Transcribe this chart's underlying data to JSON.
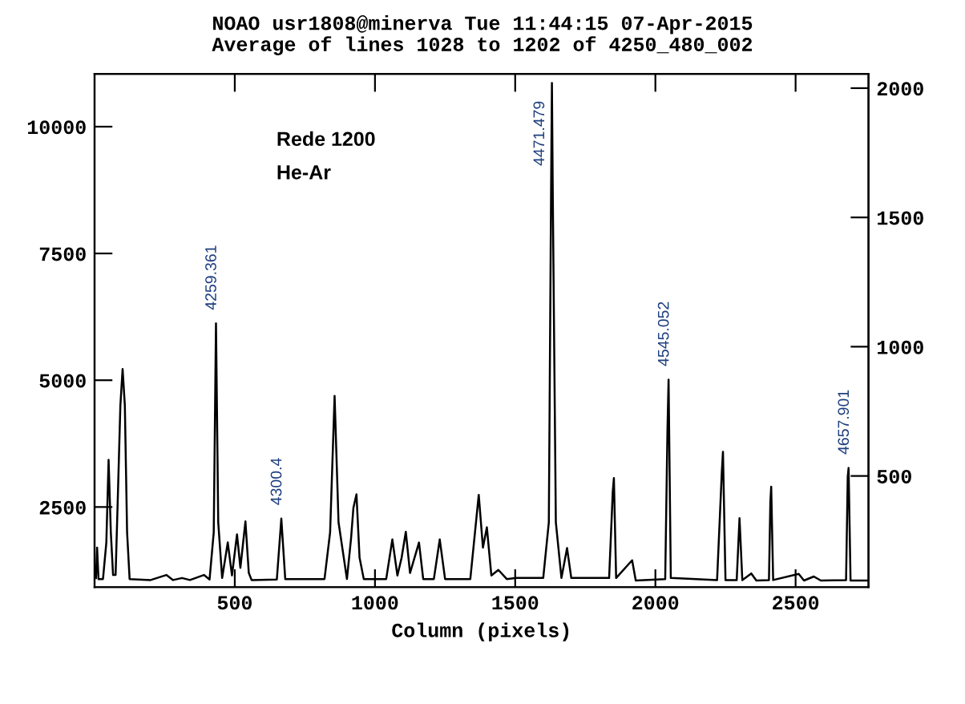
{
  "chart_data": {
    "type": "line",
    "title": "NOAO usr1808@minerva Tue 11:44:15 07-Apr-2015",
    "subtitle": "Average of lines 1028 to 1202 of 4250_480_002",
    "xlabel": "Column (pixels)",
    "xlim": [
      0,
      2760
    ],
    "xticks": [
      500,
      1000,
      1500,
      2000,
      2500
    ],
    "ylim": [
      920,
      11040
    ],
    "yticks": [
      2500,
      5000,
      7500,
      10000
    ],
    "y2lim": [
      70,
      2055
    ],
    "y2ticks": [
      500,
      1000,
      1500,
      2000
    ],
    "grid": false,
    "legend": false,
    "marker": "none",
    "line_style": "solid",
    "annotations": [
      "Rede 1200",
      "He-Ar",
      {
        "text": "4259.361",
        "x": 433,
        "y": 6120
      },
      {
        "text": "4300.4",
        "x": 666,
        "y": 2270
      },
      {
        "text": "4471.479",
        "x": 1631,
        "y": 10860
      },
      {
        "text": "4545.052",
        "x": 2047,
        "y": 5010
      },
      {
        "text": "4657.901",
        "x": 2689,
        "y": 3270
      }
    ],
    "series": [
      {
        "color": "#000000",
        "x": [
          5,
          9,
          14,
          30,
          42,
          50,
          58,
          66,
          75,
          84,
          92,
          100,
          108,
          116,
          125,
          200,
          256,
          280,
          312,
          340,
          390,
          410,
          425,
          433,
          441,
          455,
          475,
          490,
          508,
          520,
          538,
          550,
          560,
          650,
          666,
          680,
          820,
          840,
          856,
          870,
          900,
          915,
          923,
          934,
          945,
          960,
          1040,
          1062,
          1080,
          1095,
          1110,
          1125,
          1157,
          1172,
          1210,
          1231,
          1250,
          1340,
          1370,
          1385,
          1399,
          1415,
          1440,
          1470,
          1504,
          1600,
          1620,
          1628,
          1631,
          1634,
          1645,
          1665,
          1685,
          1700,
          1835,
          1848,
          1852,
          1860,
          1917,
          1930,
          2035,
          2043,
          2047,
          2055,
          2220,
          2237,
          2241,
          2250,
          2290,
          2300,
          2310,
          2342,
          2360,
          2405,
          2410,
          2413,
          2420,
          2511,
          2530,
          2565,
          2590,
          2680,
          2686,
          2689,
          2696,
          2760
        ],
        "values": [
          1100,
          1700,
          1080,
          1080,
          1800,
          3430,
          2000,
          1160,
          1160,
          2900,
          4500,
          5220,
          4500,
          2000,
          1080,
          1060,
          1160,
          1060,
          1100,
          1060,
          1160,
          1070,
          2000,
          6120,
          2200,
          1100,
          1800,
          1150,
          1960,
          1300,
          2215,
          1200,
          1060,
          1070,
          2270,
          1080,
          1080,
          2000,
          4690,
          2200,
          1080,
          1900,
          2480,
          2750,
          1500,
          1080,
          1080,
          1860,
          1150,
          1500,
          2010,
          1200,
          1800,
          1080,
          1080,
          1860,
          1080,
          1080,
          2740,
          1700,
          2100,
          1150,
          1260,
          1080,
          1100,
          1100,
          2200,
          8700,
          10860,
          8700,
          2200,
          1100,
          1690,
          1100,
          1100,
          2800,
          3070,
          1100,
          1450,
          1050,
          1080,
          4000,
          5010,
          1100,
          1060,
          3200,
          3590,
          1060,
          1060,
          2280,
          1060,
          1190,
          1050,
          1060,
          2600,
          2900,
          1060,
          1180,
          1050,
          1130,
          1050,
          1060,
          3100,
          3270,
          1050,
          1050
        ]
      }
    ]
  }
}
